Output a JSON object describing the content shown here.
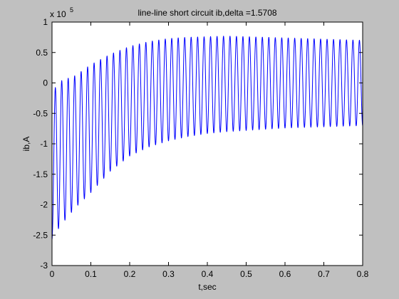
{
  "chart_data": {
    "type": "line",
    "title": "line-line short circuit ib,delta =1.5708",
    "xlabel": "t,sec",
    "ylabel": "ib,A",
    "y_multiplier_label": "x 10",
    "y_multiplier_exponent": "5",
    "xlim": [
      0,
      0.8
    ],
    "ylim": [
      -3,
      1
    ],
    "xticks": [
      "0",
      "0.1",
      "0.2",
      "0.3",
      "0.4",
      "0.5",
      "0.6",
      "0.7",
      "0.8"
    ],
    "yticks": [
      "1",
      "0.5",
      "0",
      "-0.5",
      "-1",
      "-1.5",
      "-2",
      "-2.5",
      "-3"
    ],
    "grid": false,
    "series": [
      {
        "color": "#0000ff",
        "frequency_hz": 60,
        "upper_envelope_x": [
          0.0,
          0.01,
          0.03,
          0.06,
          0.1,
          0.15,
          0.2,
          0.25,
          0.3,
          0.35,
          0.4,
          0.45,
          0.5,
          0.55,
          0.6,
          0.65,
          0.7,
          0.75,
          0.8
        ],
        "upper_envelope_y": [
          -0.5,
          0.0,
          0.05,
          0.12,
          0.3,
          0.47,
          0.6,
          0.68,
          0.73,
          0.75,
          0.76,
          0.77,
          0.76,
          0.75,
          0.74,
          0.73,
          0.72,
          0.71,
          0.7
        ],
        "lower_envelope_x": [
          0.0,
          0.01,
          0.03,
          0.06,
          0.1,
          0.15,
          0.2,
          0.25,
          0.3,
          0.35,
          0.4,
          0.45,
          0.5,
          0.55,
          0.6,
          0.65,
          0.7,
          0.75,
          0.8
        ],
        "lower_envelope_y": [
          -2.57,
          -2.45,
          -2.28,
          -2.05,
          -1.8,
          -1.45,
          -1.2,
          -1.05,
          -0.95,
          -0.88,
          -0.83,
          -0.8,
          -0.78,
          -0.76,
          -0.74,
          -0.73,
          -0.72,
          -0.71,
          -0.7
        ]
      }
    ]
  }
}
